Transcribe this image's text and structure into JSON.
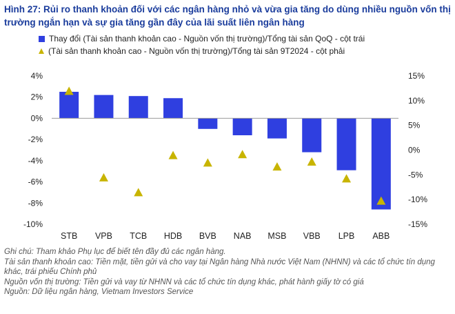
{
  "title": "Hình 27: Rủi ro thanh khoản đối với các ngân hàng nhỏ và vừa gia tăng do dùng nhiều nguồn vốn thị trường ngắn hạn và sự gia tăng gần đây của lãi suất liên ngân hàng",
  "colors": {
    "title": "#1a3c9c",
    "bar": "#2f3fe0",
    "triangle": "#c8b400"
  },
  "chart_data": {
    "type": "bar",
    "categories": [
      "STB",
      "VPB",
      "TCB",
      "HDB",
      "BVB",
      "NAB",
      "MSB",
      "VBB",
      "LPB",
      "ABB"
    ],
    "series": [
      {
        "name": "Thay đổi (Tài sản thanh khoản cao - Nguồn vốn thị trường)/Tổng tài sản QoQ - cột trái",
        "axis": "left",
        "type": "bar",
        "values": [
          2.5,
          2.2,
          2.1,
          1.9,
          -1.0,
          -1.6,
          -1.9,
          -3.2,
          -4.9,
          -8.6
        ]
      },
      {
        "name": "(Tài sản thanh khoản cao - Nguồn vốn thị trường)/Tổng tài sản 9T2024 - cột phải",
        "axis": "right",
        "type": "scatter",
        "marker": "triangle",
        "values": [
          12.0,
          -5.5,
          -8.5,
          -1.0,
          -2.5,
          -0.8,
          -3.3,
          -2.3,
          -5.7,
          -10.2
        ]
      }
    ],
    "y_left": {
      "lim": [
        -10,
        4
      ],
      "ticks": [
        4,
        2,
        0,
        -2,
        -4,
        -6,
        -8,
        -10
      ],
      "tick_labels": [
        "4%",
        "2%",
        "0%",
        "-2%",
        "-4%",
        "-6%",
        "-8%",
        "-10%"
      ]
    },
    "y_right": {
      "lim": [
        -15,
        15
      ],
      "ticks": [
        15,
        10,
        5,
        0,
        -5,
        -10,
        -15
      ],
      "tick_labels": [
        "15%",
        "10%",
        "5%",
        "0%",
        "-5%",
        "-10%",
        "-15%"
      ]
    },
    "grid": false,
    "legend_position": "top-left"
  },
  "notes": [
    "Ghi chú: Tham khảo Phụ lục để biết tên đầy đủ các ngân hàng.",
    "Tài sản thanh khoản cao: Tiền mặt, tiền gửi và cho vay tại Ngân hàng Nhà nước Việt Nam (NHNN) và các tổ chức tín dụng khác, trái phiếu Chính phủ",
    "Nguồn vốn thị trường: Tiền gửi và vay từ NHNN và các tổ chức tín dụng khác, phát hành giấy tờ có giá",
    "Nguồn: Dữ liệu ngân hàng, Vietnam Investors Service"
  ]
}
